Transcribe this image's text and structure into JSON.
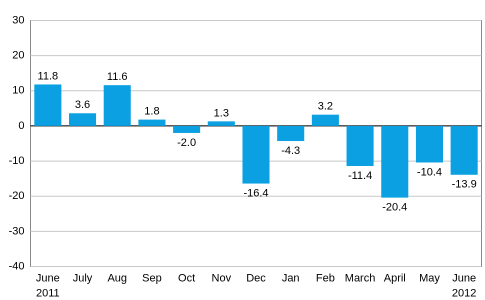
{
  "chart_data": {
    "type": "bar",
    "categories": [
      "June",
      "July",
      "Aug",
      "Sep",
      "Oct",
      "Nov",
      "Dec",
      "Jan",
      "Feb",
      "March",
      "April",
      "May",
      "June"
    ],
    "year_labels": [
      "2011",
      null,
      null,
      null,
      null,
      null,
      null,
      null,
      null,
      null,
      null,
      null,
      "2012"
    ],
    "values": [
      11.8,
      3.6,
      11.6,
      1.8,
      -2.0,
      1.3,
      -16.4,
      -4.3,
      3.2,
      -11.4,
      -20.4,
      -10.4,
      -13.9
    ],
    "value_labels": [
      "11.8",
      "3.6",
      "11.6",
      "1.8",
      "-2.0",
      "1.3",
      "-16.4",
      "-4.3",
      "3.2",
      "-11.4",
      "-20.4",
      "-10.4",
      "-13.9"
    ],
    "color": "#0aa0e1",
    "ylim": [
      -40,
      30
    ],
    "yticks": [
      -40,
      -30,
      -20,
      -10,
      0,
      10,
      20,
      30
    ],
    "grid": true
  }
}
